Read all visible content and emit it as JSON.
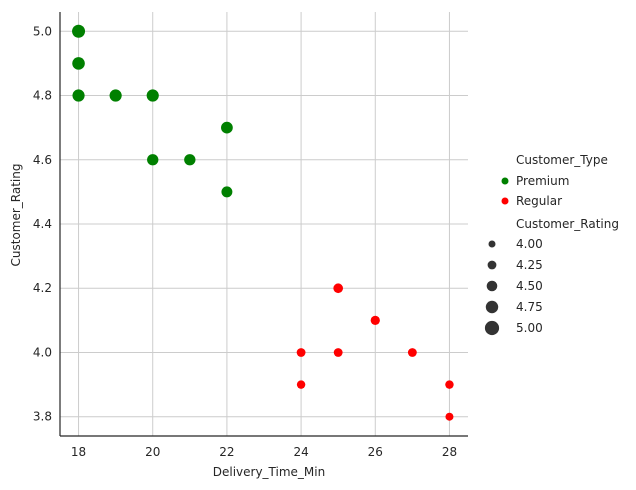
{
  "chart_data": {
    "type": "scatter",
    "xlabel": "Delivery_Time_Min",
    "ylabel": "Customer_Rating",
    "xlim": [
      17.5,
      28.5
    ],
    "ylim": [
      3.74,
      5.06
    ],
    "xticks": [
      18,
      20,
      22,
      24,
      26,
      28
    ],
    "yticks": [
      3.8,
      4.0,
      4.2,
      4.4,
      4.6,
      4.8,
      5.0
    ],
    "xtick_labels": [
      "18",
      "20",
      "22",
      "24",
      "26",
      "28"
    ],
    "ytick_labels": [
      "3.8",
      "4.0",
      "4.2",
      "4.4",
      "4.6",
      "4.8",
      "5.0"
    ],
    "grid": true,
    "legend_position": "right",
    "size_variable": "Customer_Rating",
    "series": [
      {
        "name": "Premium",
        "color": "#008000",
        "points": [
          {
            "x": 18,
            "y": 5.0
          },
          {
            "x": 18,
            "y": 4.9
          },
          {
            "x": 18,
            "y": 4.8
          },
          {
            "x": 19,
            "y": 4.8
          },
          {
            "x": 20,
            "y": 4.8
          },
          {
            "x": 20,
            "y": 4.6
          },
          {
            "x": 21,
            "y": 4.6
          },
          {
            "x": 22,
            "y": 4.7
          },
          {
            "x": 22,
            "y": 4.5
          }
        ]
      },
      {
        "name": "Regular",
        "color": "#ff0000",
        "points": [
          {
            "x": 25,
            "y": 4.2
          },
          {
            "x": 26,
            "y": 4.1
          },
          {
            "x": 24,
            "y": 4.0
          },
          {
            "x": 25,
            "y": 4.0
          },
          {
            "x": 27,
            "y": 4.0
          },
          {
            "x": 24,
            "y": 3.9
          },
          {
            "x": 28,
            "y": 3.9
          },
          {
            "x": 28,
            "y": 3.8
          }
        ]
      }
    ],
    "legend": {
      "hue_title": "Customer_Type",
      "hue_entries": [
        "Premium",
        "Regular"
      ],
      "size_title": "Customer_Rating",
      "size_entries": [
        "4.00",
        "4.25",
        "4.50",
        "4.75",
        "5.00"
      ],
      "size_values": [
        4.0,
        4.25,
        4.5,
        4.75,
        5.0
      ]
    }
  }
}
